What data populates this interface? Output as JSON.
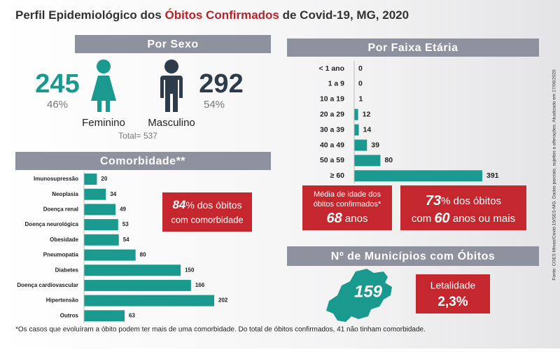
{
  "title": [
    "Perfil Epidemiológico dos ",
    "Óbitos Confirmados",
    " de Covid-19, MG, 2020"
  ],
  "sexo": {
    "header": "Por Sexo",
    "female": {
      "value": "245",
      "percent": "46%",
      "label": "Feminino"
    },
    "male": {
      "value": "292",
      "percent": "54%",
      "label": "Masculino"
    },
    "total": "Total= 537"
  },
  "chart_data": [
    {
      "type": "bar",
      "orientation": "horizontal",
      "title": "Comorbidade**",
      "categories": [
        "Imunosupressão",
        "Neoplasia",
        "Doença renal",
        "Doença neurológica",
        "Obesidade",
        "Pneumopatia",
        "Diabetes",
        "Doença cardiovascular",
        "Hipertensão",
        "Outros"
      ],
      "values": [
        20,
        34,
        49,
        53,
        54,
        80,
        150,
        166,
        202,
        63
      ],
      "color": "#1a9a8e"
    },
    {
      "type": "bar",
      "orientation": "horizontal",
      "title": "Por Faixa Etária",
      "categories": [
        "< 1 ano",
        "1 a 9",
        "10 a 19",
        "20 a 29",
        "30 a 39",
        "40 a 49",
        "50 a 59",
        "≥ 60"
      ],
      "values": [
        0,
        0,
        1,
        12,
        14,
        39,
        80,
        391
      ],
      "color": "#1a9a8e"
    }
  ],
  "comorbidade_box": [
    "84",
    "% dos óbitos",
    "com comorbidade"
  ],
  "idade_box": [
    "Média de idade dos",
    "óbitos confirmados*",
    "68",
    " anos"
  ],
  "sessenta_box": [
    "73",
    "% dos óbitos",
    "com ",
    "60",
    " anos ou mais"
  ],
  "municipios": {
    "header": "Nº de Municípios com Óbitos",
    "value": "159",
    "letalidade_label": "Letalidade",
    "letalidade_value": "2,3%"
  },
  "footnote": "*Os casos que evoluíram a óbito podem ter mais de uma comorbidade. Do total de óbitos confirmados, 41 não tinham comorbidade.",
  "source": "Fonte: COES Minas/Covid-19/SES-MG. Dados parciais, sujeitos a alterações. Atualizado em 17/06/2020"
}
